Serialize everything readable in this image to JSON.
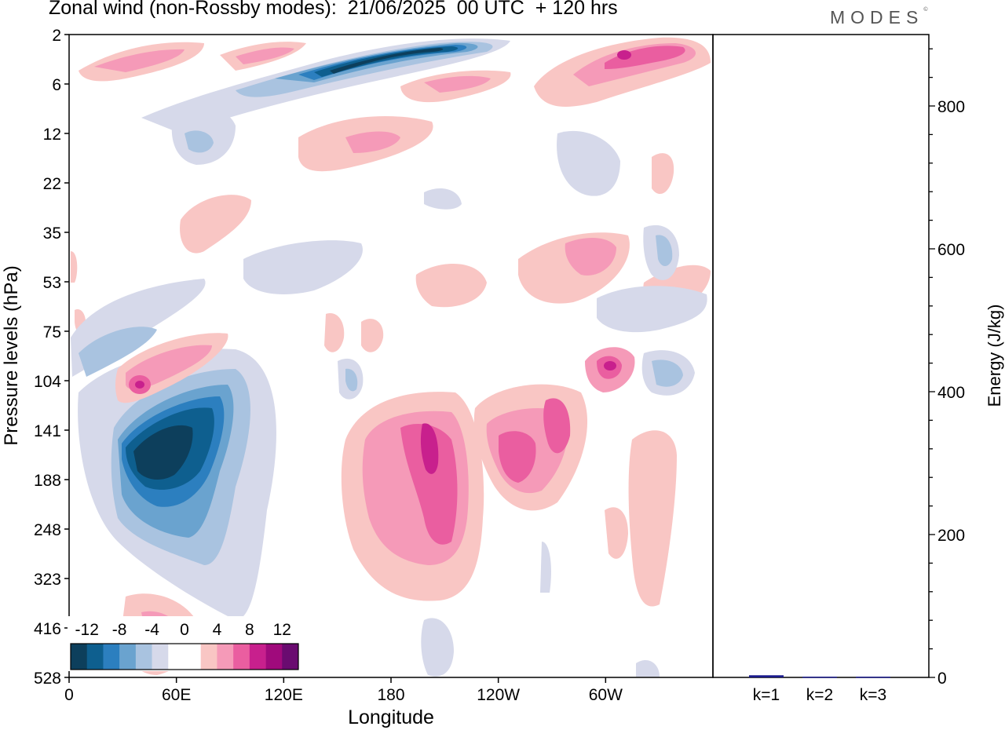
{
  "title": "Zonal wind (non-Rossby modes):  21/06/2025  00 UTC  + 120 hrs",
  "logo": "MODES",
  "chart_data": [
    {
      "type": "heatmap",
      "variable": "Zonal wind (non-Rossby modes)",
      "xlabel": "Longitude",
      "ylabel": "Pressure levels (hPa)",
      "x_ticks": [
        "0",
        "60E",
        "120E",
        "180",
        "120W",
        "60W"
      ],
      "x_tick_values": [
        0,
        60,
        120,
        180,
        240,
        300
      ],
      "xlim": [
        0,
        360
      ],
      "y_ticks": [
        "2",
        "6",
        "12",
        "22",
        "35",
        "53",
        "75",
        "104",
        "141",
        "188",
        "248",
        "323",
        "416",
        "528"
      ],
      "y_scale": "model levels (top 2 hPa to bottom 528 hPa)",
      "colorbar_labels": [
        "-12",
        "-8",
        "-4",
        "0",
        "4",
        "8",
        "12"
      ],
      "colorbar_colors": [
        "#0d3f5c",
        "#0e5f8f",
        "#2c7fbf",
        "#6aa3cf",
        "#a9c3e0",
        "#d6d9ea",
        "#ffffff",
        "#ffffff",
        "#f9c6c4",
        "#f59ab8",
        "#ea5ea0",
        "#c8208d",
        "#a00a7c",
        "#6a0b70"
      ],
      "features": [
        {
          "sign": "negative",
          "value": -14,
          "lon": 45,
          "level": "170 hPa",
          "desc": "strong easterly core"
        },
        {
          "sign": "negative",
          "value": -14,
          "lon": 195,
          "level": "3-5 hPa",
          "desc": "tilted easterly band"
        },
        {
          "sign": "positive",
          "value": 10,
          "lon": 200,
          "level": "160 hPa"
        },
        {
          "sign": "positive",
          "value": 8,
          "lon": 250,
          "level": "150 hPa"
        },
        {
          "sign": "positive",
          "value": 8,
          "lon": 300,
          "level": "100 hPa"
        },
        {
          "sign": "positive",
          "value": 8,
          "lon": 33,
          "level": "105 hPa"
        },
        {
          "sign": "positive",
          "value": 10,
          "lon": 315,
          "level": "3 hPa"
        }
      ]
    },
    {
      "type": "bar",
      "categories": [
        "k=1",
        "k=2",
        "k=3"
      ],
      "values": [
        3,
        1,
        1
      ],
      "ylabel": "Energy (J/kg)",
      "ylim": [
        0,
        900
      ],
      "y_ticks": [
        0,
        200,
        400,
        600,
        800
      ],
      "bar_color": "#1a1a8c"
    }
  ]
}
